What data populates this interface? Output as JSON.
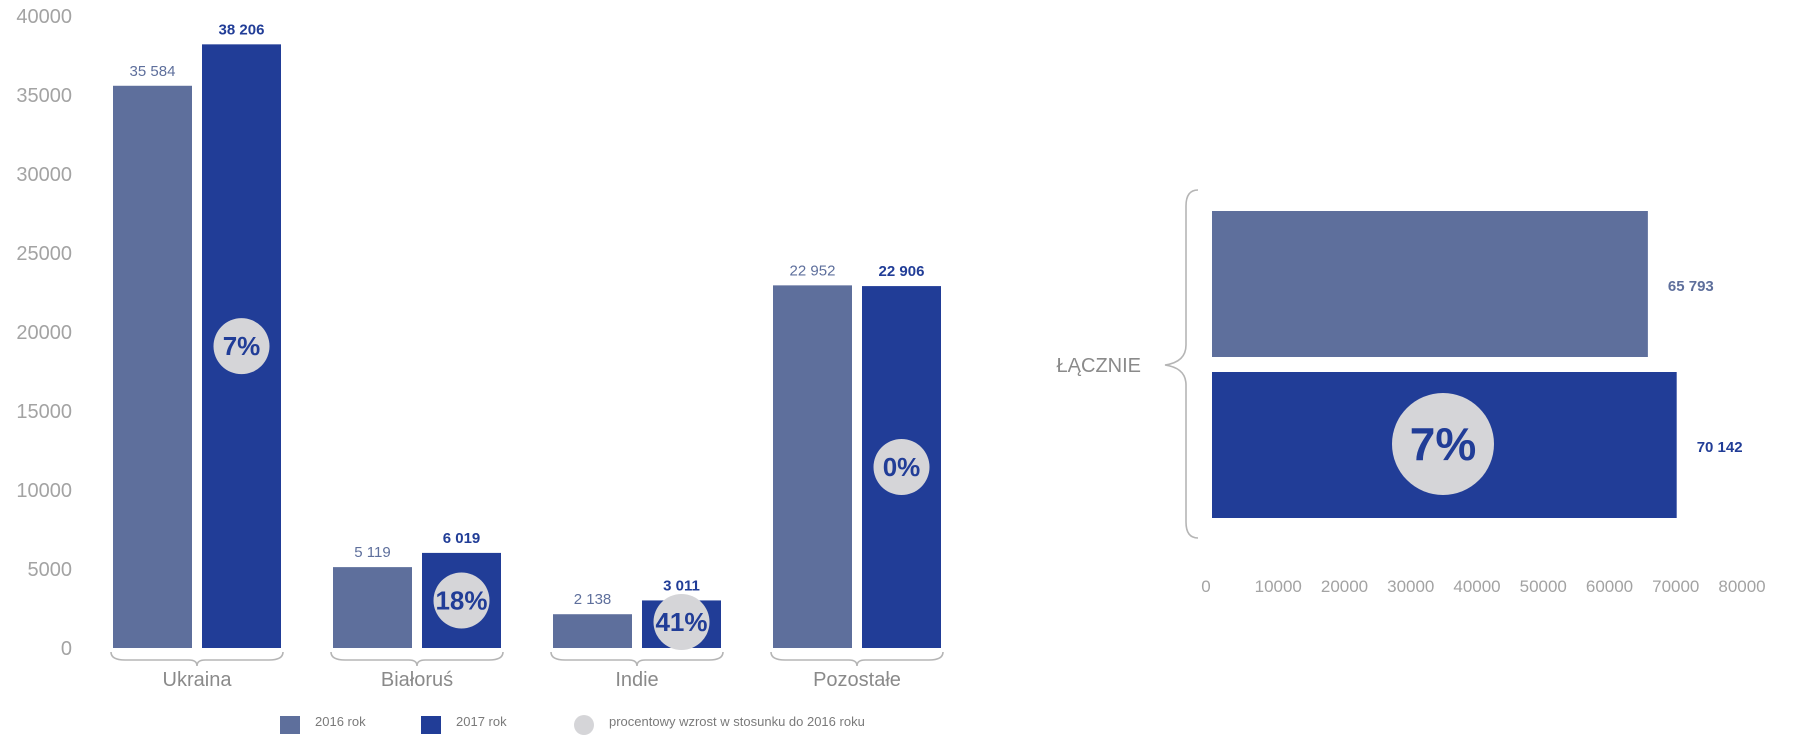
{
  "colors": {
    "y2016": "#5e6f9c",
    "y2017": "#213d97",
    "growth_circle": "#d5d5d8",
    "axis_text": "#a3a3a3",
    "brace": "#b5b5b5"
  },
  "legend": {
    "y2016": "2016 rok",
    "y2017": "2017 rok",
    "growth": "procentowy wzrost w stosunku do 2016 roku"
  },
  "chart_data": [
    {
      "type": "bar",
      "categories": [
        "Ukraina",
        "Białoruś",
        "Indie",
        "Pozostałe"
      ],
      "series": [
        {
          "name": "2016 rok",
          "values": [
            35584,
            5119,
            2138,
            22952
          ],
          "labels": [
            "35 584",
            "5 119",
            "2 138",
            "22 952"
          ]
        },
        {
          "name": "2017 rok",
          "values": [
            38206,
            6019,
            3011,
            22906
          ],
          "labels": [
            "38 206",
            "6 019",
            "3 011",
            "22 906"
          ]
        }
      ],
      "growth_labels": [
        "7%",
        "18%",
        "41%",
        "0%"
      ],
      "ylim": [
        0,
        40000
      ],
      "yticks": [
        0,
        5000,
        10000,
        15000,
        20000,
        25000,
        30000,
        35000,
        40000
      ],
      "grid": false
    },
    {
      "type": "bar",
      "orientation": "horizontal",
      "category": "ŁĄCZNIE",
      "series": [
        {
          "name": "2016 rok",
          "value": 65793,
          "label": "65 793"
        },
        {
          "name": "2017 rok",
          "value": 70142,
          "label": "70 142"
        }
      ],
      "growth_label": "7%",
      "xlim": [
        0,
        80000
      ],
      "xticks": [
        0,
        10000,
        20000,
        30000,
        40000,
        50000,
        60000,
        70000,
        80000
      ],
      "grid": false
    }
  ]
}
